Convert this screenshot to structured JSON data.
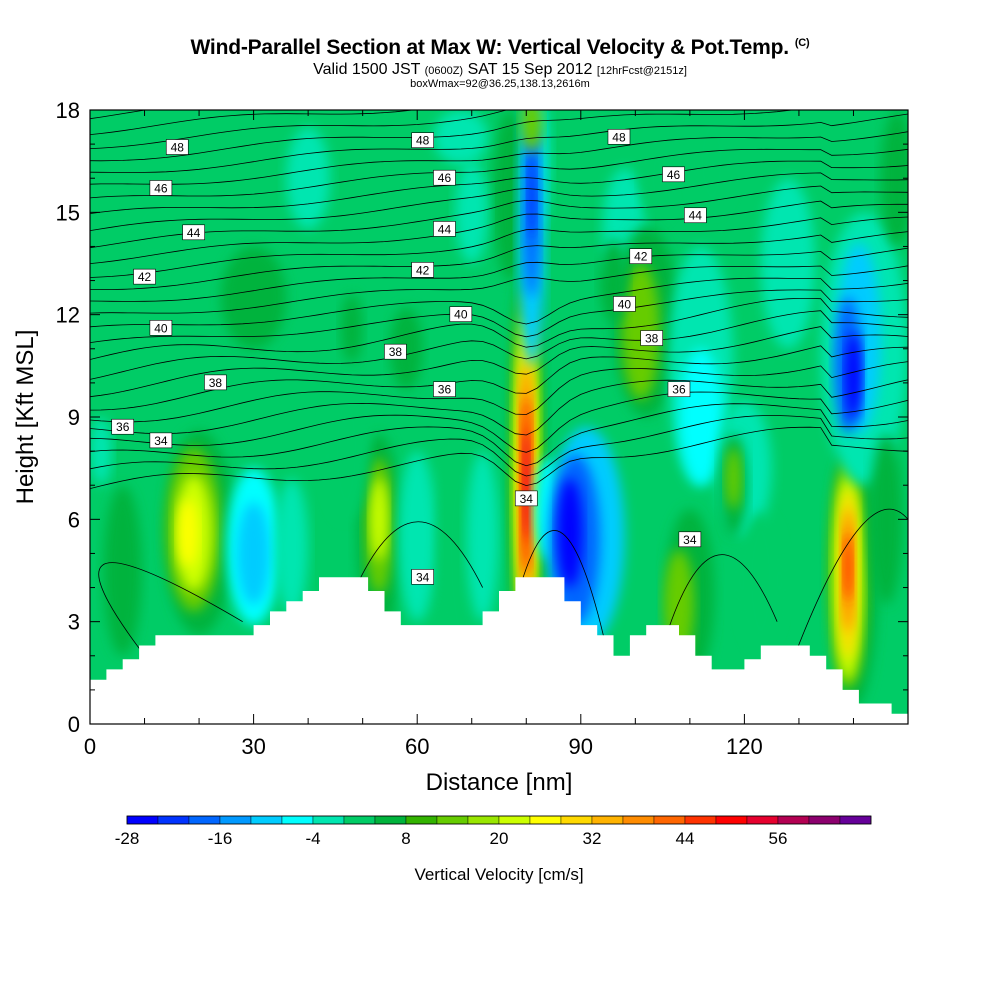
{
  "header": {
    "title": "Wind-Parallel Section at Max W: Vertical Velocity & Pot.Temp.",
    "copyright": "(C)",
    "valid_prefix": "Valid 1500 JST",
    "valid_utc": "(0600Z)",
    "valid_date": "SAT 15 Sep 2012",
    "forecast": "[12hrFcst@2151z]",
    "box_info": "boxWmax=92@36.25,138.13,2616m"
  },
  "chart_data": {
    "type": "heatmap",
    "xlabel": "Distance [nm]",
    "ylabel": "Height [Kft MSL]",
    "xlim": [
      0,
      150
    ],
    "ylim": [
      0,
      18
    ],
    "xticks": [
      0,
      30,
      60,
      90,
      120
    ],
    "yticks": [
      0,
      3,
      6,
      9,
      12,
      15,
      18
    ],
    "colorbar": {
      "title": "Vertical Velocity [cm/s]",
      "levels": [
        -28,
        -24,
        -20,
        -16,
        -12,
        -8,
        -4,
        0,
        4,
        8,
        12,
        16,
        20,
        24,
        28,
        32,
        36,
        40,
        44,
        48,
        52,
        56,
        60,
        64
      ],
      "tick_labels": [
        "-28",
        "-16",
        "-4",
        "8",
        "20",
        "32",
        "44",
        "56"
      ],
      "colors": [
        "#0000ff",
        "#0033ff",
        "#0066ff",
        "#0099ff",
        "#00ccff",
        "#00ffff",
        "#00e6b0",
        "#00cc66",
        "#00b33c",
        "#33b300",
        "#66cc00",
        "#99e600",
        "#ccff00",
        "#ffff00",
        "#ffd900",
        "#ffb300",
        "#ff8c00",
        "#ff6600",
        "#ff3300",
        "#ff0000",
        "#e6002e",
        "#b30052",
        "#8c006e",
        "#660099"
      ]
    },
    "contour_labels": [
      {
        "value": "48",
        "x": 16,
        "y": 16.9
      },
      {
        "value": "48",
        "x": 61,
        "y": 17.1
      },
      {
        "value": "48",
        "x": 97,
        "y": 17.2
      },
      {
        "value": "46",
        "x": 13,
        "y": 15.7
      },
      {
        "value": "46",
        "x": 65,
        "y": 16.0
      },
      {
        "value": "46",
        "x": 107,
        "y": 16.1
      },
      {
        "value": "44",
        "x": 19,
        "y": 14.4
      },
      {
        "value": "44",
        "x": 65,
        "y": 14.5
      },
      {
        "value": "44",
        "x": 111,
        "y": 14.9
      },
      {
        "value": "42",
        "x": 10,
        "y": 13.1
      },
      {
        "value": "42",
        "x": 61,
        "y": 13.3
      },
      {
        "value": "42",
        "x": 101,
        "y": 13.7
      },
      {
        "value": "40",
        "x": 13,
        "y": 11.6
      },
      {
        "value": "40",
        "x": 68,
        "y": 12.0
      },
      {
        "value": "40",
        "x": 98,
        "y": 12.3
      },
      {
        "value": "38",
        "x": 56,
        "y": 10.9
      },
      {
        "value": "38",
        "x": 103,
        "y": 11.3
      },
      {
        "value": "38",
        "x": 23,
        "y": 10.0
      },
      {
        "value": "36",
        "x": 6,
        "y": 8.7
      },
      {
        "value": "36",
        "x": 65,
        "y": 9.8
      },
      {
        "value": "36",
        "x": 108,
        "y": 9.8
      },
      {
        "value": "34",
        "x": 13,
        "y": 8.3
      },
      {
        "value": "34",
        "x": 80,
        "y": 6.6
      },
      {
        "value": "34",
        "x": 61,
        "y": 4.3
      },
      {
        "value": "34",
        "x": 110,
        "y": 5.4
      }
    ],
    "terrain_top_kft": [
      1.3,
      1.6,
      1.9,
      2.3,
      2.6,
      2.6,
      2.6,
      2.6,
      2.6,
      2.6,
      2.9,
      3.3,
      3.6,
      3.9,
      4.3,
      4.3,
      4.3,
      3.9,
      3.3,
      2.9,
      2.9,
      2.9,
      2.9,
      2.9,
      3.3,
      3.9,
      4.3,
      4.3,
      4.3,
      3.6,
      2.9,
      2.6,
      2.0,
      2.6,
      2.9,
      2.9,
      2.6,
      2.0,
      1.6,
      1.6,
      1.9,
      2.3,
      2.3,
      2.3,
      2.0,
      1.6,
      1.0,
      0.6,
      0.6,
      0.3,
      0.3
    ]
  }
}
